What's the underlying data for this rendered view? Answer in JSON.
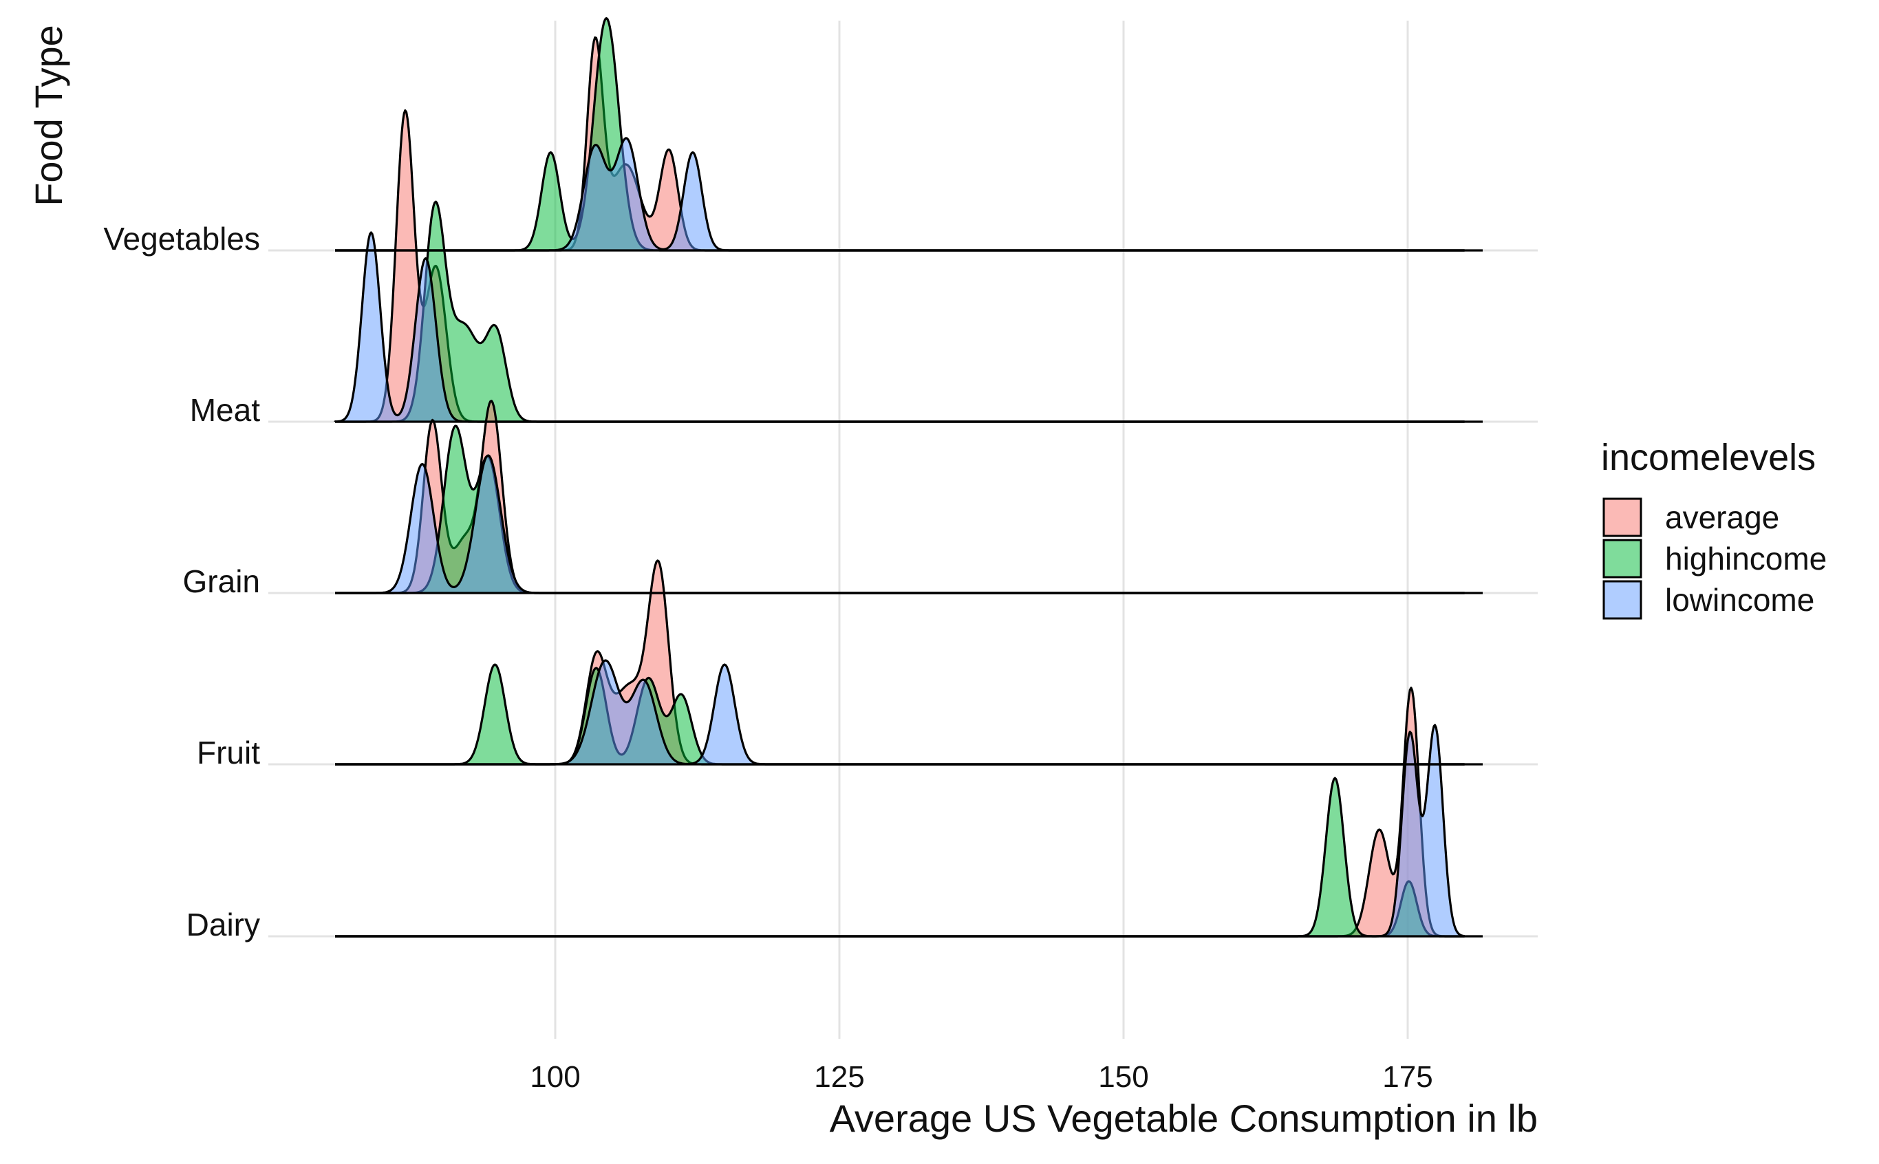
{
  "chart_data": {
    "type": "ridgeline",
    "xlabel": "Average US Vegetable Consumption in lb",
    "ylabel": "Food Type",
    "x_ticks": [
      100,
      125,
      150,
      175
    ],
    "xlim": [
      80,
      180
    ],
    "categories": [
      "Dairy",
      "Fruit",
      "Grain",
      "Meat",
      "Vegetables"
    ],
    "legend": {
      "title": "incomelevels",
      "position": "right",
      "entries": [
        {
          "name": "average",
          "color": "#F8766D"
        },
        {
          "name": "highincome",
          "color": "#00BA38"
        },
        {
          "name": "lowincome",
          "color": "#619CFF"
        }
      ]
    },
    "grid": "vertical-major",
    "series": [
      {
        "category": "Dairy",
        "group": "average",
        "peaks": [
          [
            172.5,
            0.62,
            0.9
          ],
          [
            175.3,
            1.44,
            0.7
          ]
        ]
      },
      {
        "category": "Dairy",
        "group": "highincome",
        "peaks": [
          [
            168.6,
            0.92,
            0.8
          ],
          [
            175.1,
            0.32,
            0.7
          ]
        ]
      },
      {
        "category": "Dairy",
        "group": "lowincome",
        "peaks": [
          [
            175.2,
            1.18,
            0.7
          ],
          [
            177.4,
            1.22,
            0.7
          ]
        ]
      },
      {
        "category": "Fruit",
        "group": "average",
        "peaks": [
          [
            103.6,
            0.6,
            0.9
          ],
          [
            106.5,
            0.45,
            1.4
          ],
          [
            109.1,
            1.1,
            0.9
          ]
        ]
      },
      {
        "category": "Fruit",
        "group": "highincome",
        "peaks": [
          [
            94.7,
            0.58,
            0.9
          ],
          [
            103.6,
            0.56,
            0.9
          ],
          [
            108.2,
            0.5,
            1.0
          ],
          [
            111.1,
            0.4,
            0.9
          ]
        ]
      },
      {
        "category": "Fruit",
        "group": "lowincome",
        "peaks": [
          [
            104.4,
            0.6,
            1.2
          ],
          [
            107.8,
            0.48,
            1.1
          ],
          [
            114.9,
            0.58,
            0.9
          ]
        ]
      },
      {
        "category": "Grain",
        "group": "average",
        "peaks": [
          [
            89.2,
            1.0,
            0.8
          ],
          [
            92.0,
            0.3,
            1.0
          ],
          [
            94.4,
            1.1,
            0.9
          ]
        ]
      },
      {
        "category": "Grain",
        "group": "highincome",
        "peaks": [
          [
            91.2,
            0.96,
            1.0
          ],
          [
            94.1,
            0.78,
            1.0
          ]
        ]
      },
      {
        "category": "Grain",
        "group": "lowincome",
        "peaks": [
          [
            88.3,
            0.75,
            1.0
          ],
          [
            94.1,
            0.8,
            1.1
          ]
        ]
      },
      {
        "category": "Meat",
        "group": "average",
        "peaks": [
          [
            86.8,
            1.8,
            0.8
          ],
          [
            89.5,
            0.9,
            0.9
          ]
        ]
      },
      {
        "category": "Meat",
        "group": "highincome",
        "peaks": [
          [
            89.4,
            1.2,
            0.9
          ],
          [
            92.0,
            0.55,
            1.3
          ],
          [
            94.8,
            0.5,
            0.9
          ]
        ]
      },
      {
        "category": "Meat",
        "group": "lowincome",
        "peaks": [
          [
            83.8,
            1.1,
            0.8
          ],
          [
            88.6,
            0.95,
            0.9
          ]
        ]
      },
      {
        "category": "Vegetables",
        "group": "average",
        "peaks": [
          [
            103.5,
            1.18,
            0.7
          ],
          [
            106.2,
            0.5,
            1.3
          ],
          [
            110.0,
            0.58,
            0.8
          ]
        ]
      },
      {
        "category": "Vegetables",
        "group": "highincome",
        "peaks": [
          [
            99.6,
            0.57,
            0.8
          ],
          [
            104.5,
            1.35,
            1.1
          ]
        ]
      },
      {
        "category": "Vegetables",
        "group": "lowincome",
        "peaks": [
          [
            103.5,
            0.6,
            1.0
          ],
          [
            106.3,
            0.64,
            1.0
          ],
          [
            112.1,
            0.57,
            0.8
          ]
        ]
      }
    ]
  }
}
